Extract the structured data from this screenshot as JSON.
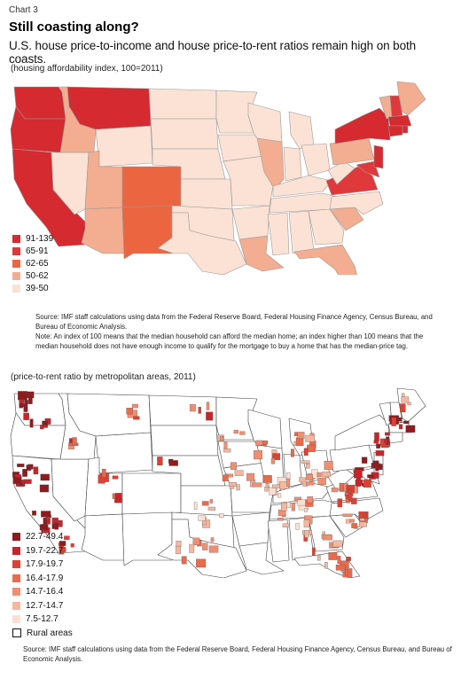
{
  "header": {
    "chart_label": "Chart 3",
    "title": "Still coasting along?",
    "subtitle": "U.S. house price-to-income and house price-to-rent ratios remain high on both coasts."
  },
  "map1": {
    "unit": "(housing affordability index, 100=2011)",
    "legend": [
      {
        "label": "91-139",
        "color": "#d42a30"
      },
      {
        "label": "65-91",
        "color": "#e0393c"
      },
      {
        "label": "62-65",
        "color": "#ec6541"
      },
      {
        "label": "50-62",
        "color": "#f3ad90"
      },
      {
        "label": "39-50",
        "color": "#fbe2d4"
      }
    ],
    "source": "Source: IMF staff calculations using data from the Federal Reserve Board, Federal Housing Finance Agency, Census Bureau, and Bureau of Economic Analysis.",
    "note": "Note: An index of 100 means that the median household can afford the median home; an index higher than 100 means that the median household does not have enough income to qualify for the mortgage to buy a home that has the median-price tag."
  },
  "map2": {
    "unit": "(price-to-rent ratio by metropolitan areas, 2011)",
    "legend": [
      {
        "label": "22.7-49.4",
        "color": "#8e1b1f"
      },
      {
        "label": "19.7-22.7",
        "color": "#c8242a"
      },
      {
        "label": "17.9-19.7",
        "color": "#df4034"
      },
      {
        "label": "16.4-17.9",
        "color": "#ea6a4c"
      },
      {
        "label": "14.7-16.4",
        "color": "#f08e72"
      },
      {
        "label": "12.7-14.7",
        "color": "#f5b79e"
      },
      {
        "label": "7.5-12.7",
        "color": "#fbe0d2"
      },
      {
        "label": "Rural areas",
        "color": "#ffffff"
      }
    ],
    "source": "Source: IMF staff calculations using data from the Federal Reserve Board, Federal Housing Finance Agency, Census Bureau, and Bureau of Economic Analysis."
  }
}
